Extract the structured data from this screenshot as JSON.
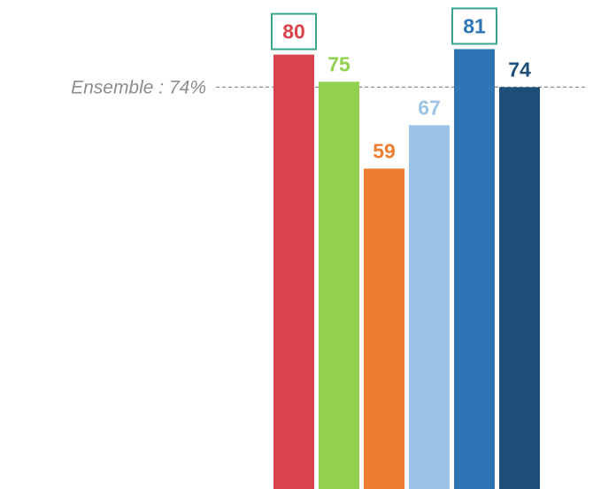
{
  "chart_data": {
    "type": "bar",
    "categories": [
      "",
      "",
      "",
      "",
      "",
      ""
    ],
    "values": [
      80,
      75,
      59,
      67,
      81,
      74
    ],
    "colors": [
      "#d9434b",
      "#92d050",
      "#ed7d31",
      "#9dc3e6",
      "#2e75b6",
      "#1f4e79"
    ],
    "highlighted": [
      true,
      false,
      false,
      false,
      true,
      false
    ],
    "highlight_border_color": "#3aa58f",
    "ylim": [
      0,
      100
    ],
    "grid": false,
    "reference_line": {
      "value": 74,
      "label": "Ensemble : 74%",
      "color": "#8c8c8c",
      "style": "dashed"
    }
  }
}
